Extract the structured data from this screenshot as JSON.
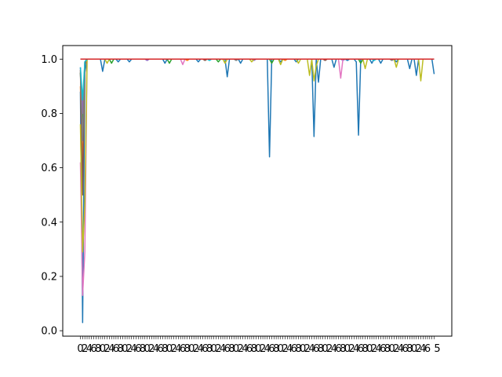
{
  "chart_data": {
    "type": "line",
    "title": "",
    "xlabel": "",
    "ylabel": "",
    "ylim": [
      -0.02,
      1.05
    ],
    "grid": false,
    "legend": "none",
    "x_points": 160,
    "y_ticks": [
      "0.0",
      "0.2",
      "0.4",
      "0.6",
      "0.8",
      "1.0"
    ],
    "x_tick_labels_visible": [
      "0",
      "5"
    ],
    "series": [
      {
        "color": "#1f77b4",
        "baseline": 1.0,
        "start": [
          0.88,
          0.03,
          0.95,
          1.0
        ],
        "dips": [
          [
            10,
            0.955
          ],
          [
            17,
            0.99
          ],
          [
            22,
            0.99
          ],
          [
            38,
            0.985
          ],
          [
            53,
            0.99
          ],
          [
            66,
            0.935
          ],
          [
            72,
            0.985
          ],
          [
            85,
            0.99
          ],
          [
            90,
            0.99
          ],
          [
            97,
            0.99
          ],
          [
            114,
            0.97
          ],
          [
            120,
            0.995
          ],
          [
            124,
            0.99
          ],
          [
            131,
            0.985
          ],
          [
            135,
            0.985
          ],
          [
            142,
            0.99
          ],
          [
            148,
            0.965
          ],
          [
            151,
            0.94
          ],
          [
            159,
            0.945
          ]
        ],
        "deep": [
          [
            85,
            0.64
          ],
          [
            105,
            0.715
          ],
          [
            107,
            0.915
          ],
          [
            125,
            0.72
          ]
        ]
      },
      {
        "color": "#ff7f0e",
        "baseline": 1.0,
        "start": [
          0.9,
          0.6,
          0.98,
          1.0
        ],
        "dips": [
          [
            48,
            0.995
          ],
          [
            92,
            0.995
          ]
        ],
        "deep": []
      },
      {
        "color": "#2ca02c",
        "baseline": 1.0,
        "start": [
          0.95,
          0.75,
          0.99,
          1.0
        ],
        "dips": [
          [
            14,
            0.985
          ],
          [
            40,
            0.985
          ],
          [
            62,
            0.99
          ],
          [
            86,
            0.985
          ],
          [
            126,
            0.985
          ]
        ],
        "deep": []
      },
      {
        "color": "#9467bd",
        "baseline": 1.0,
        "start": [
          0.97,
          0.8,
          0.99,
          1.0
        ],
        "dips": [
          [
            30,
            0.995
          ],
          [
            78,
            0.995
          ],
          [
            118,
            0.995
          ]
        ],
        "deep": []
      },
      {
        "color": "#8c564b",
        "baseline": 1.0,
        "start": [
          0.96,
          0.5,
          0.98,
          1.0
        ],
        "dips": [
          [
            56,
            0.995
          ],
          [
            110,
            0.995
          ]
        ],
        "deep": []
      },
      {
        "color": "#e377c2",
        "baseline": 1.0,
        "start": [
          0.62,
          0.13,
          0.29,
          1.0
        ],
        "dips": [
          [
            46,
            0.98
          ],
          [
            117,
            0.93
          ]
        ],
        "deep": []
      },
      {
        "color": "#7f7f7f",
        "baseline": 1.0,
        "start": [
          0.95,
          0.7,
          0.99,
          1.0
        ],
        "dips": [
          [
            70,
            0.995
          ],
          [
            140,
            0.995
          ]
        ],
        "deep": []
      },
      {
        "color": "#bcbd22",
        "baseline": 1.0,
        "start": [
          0.76,
          0.29,
          0.46,
          1.0
        ],
        "dips": [
          [
            12,
            0.985
          ],
          [
            65,
            0.985
          ],
          [
            77,
            0.99
          ],
          [
            90,
            0.98
          ],
          [
            98,
            0.985
          ],
          [
            103,
            0.94
          ],
          [
            105,
            0.92
          ],
          [
            106,
            0.975
          ],
          [
            128,
            0.965
          ],
          [
            142,
            0.97
          ],
          [
            153,
            0.92
          ]
        ],
        "deep": []
      },
      {
        "color": "#17becf",
        "baseline": 1.0,
        "start": [
          0.97,
          0.85,
          0.99,
          1.0
        ],
        "dips": [
          [
            58,
            0.995
          ],
          [
            132,
            0.995
          ]
        ],
        "deep": []
      },
      {
        "color": "#d62728",
        "baseline": 1.0,
        "start": [
          1.0,
          1.0,
          1.0,
          1.0
        ],
        "dips": [],
        "deep": []
      }
    ]
  }
}
